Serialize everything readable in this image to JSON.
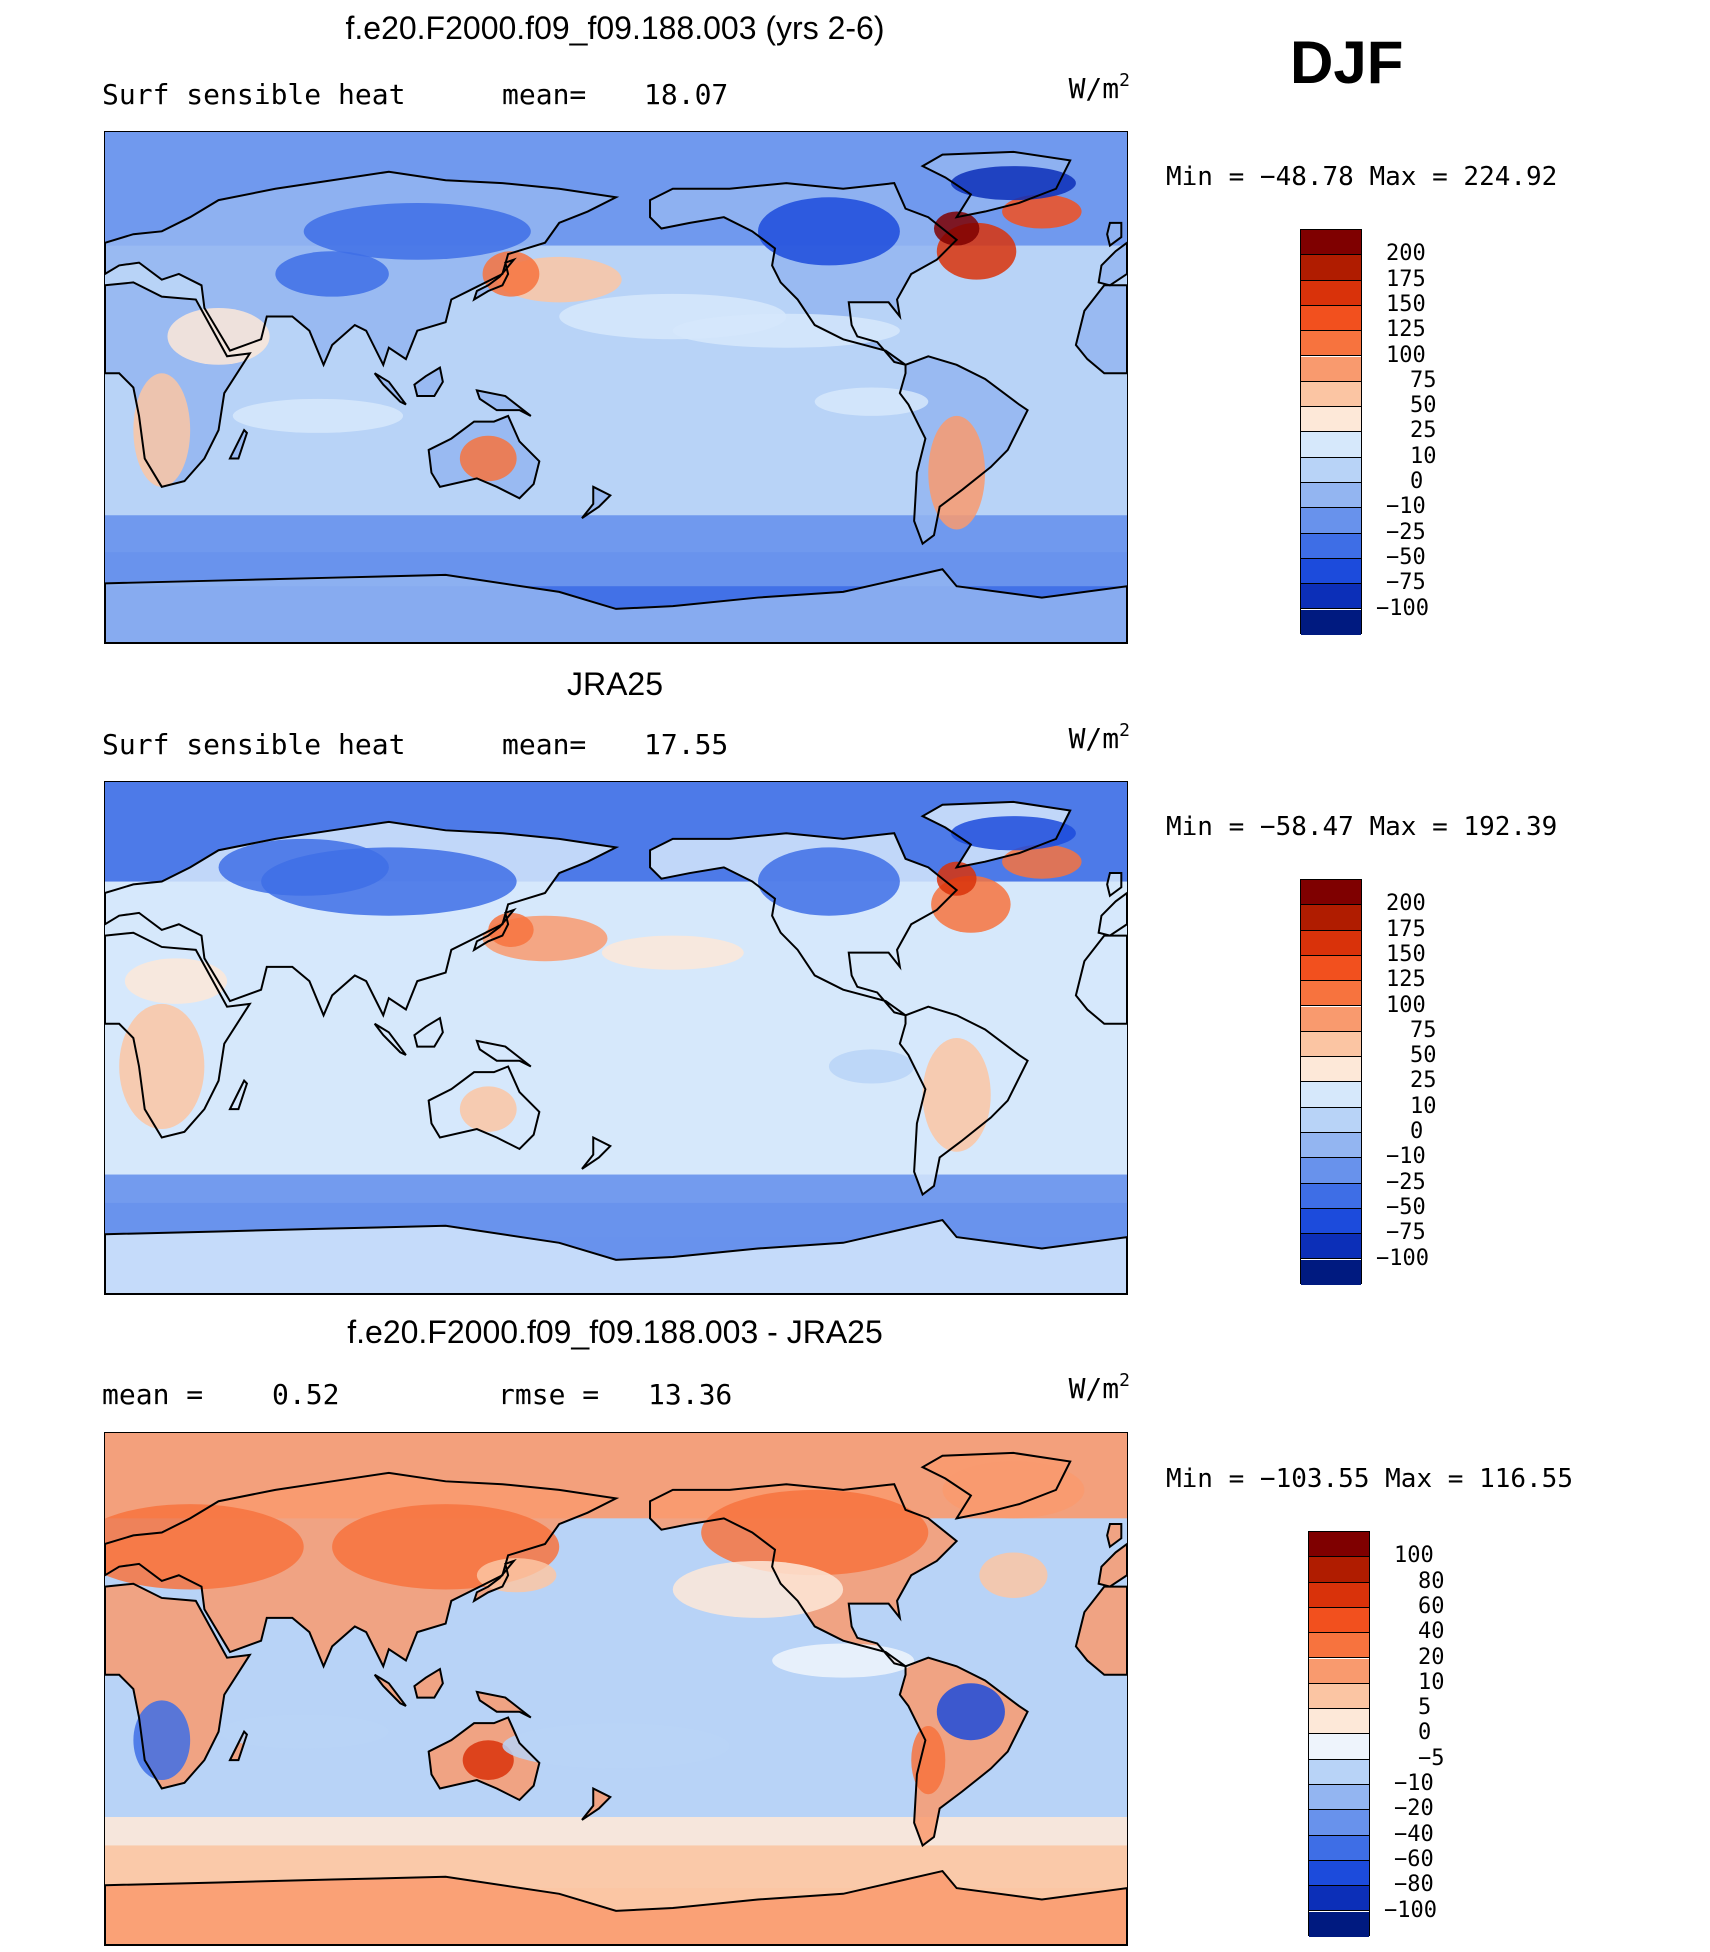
{
  "season": "DJF",
  "chart_data": [
    {
      "type": "heatmap",
      "title": "f.e20.F2000.f09_f09.188.003 (yrs 2-6)",
      "variable": "Surf sensible heat",
      "stat_label": "mean=",
      "stat_value": "18.07",
      "units_base": "W/m",
      "units_exp": "2",
      "minmax": "Min = −48.78 Max = 224.92",
      "min": -48.78,
      "max": 224.92,
      "mean": 18.07,
      "colorbar": {
        "labels": [
          "200",
          "175",
          "150",
          "125",
          "100",
          "75",
          "50",
          "25",
          "10",
          "0",
          "−10",
          "−25",
          "−50",
          "−75",
          "−100"
        ],
        "colors": [
          "#7f0000",
          "#b01c00",
          "#d9320a",
          "#f2501e",
          "#f7733e",
          "#f99a6e",
          "#fbc5a3",
          "#fde8d8",
          "#d6e8fb",
          "#b8d3f7",
          "#93b5f1",
          "#6892ec",
          "#3e6ee6",
          "#1c4bdc",
          "#0c2fb8",
          "#001a80"
        ]
      }
    },
    {
      "type": "heatmap",
      "title": "JRA25",
      "variable": "Surf sensible heat",
      "stat_label": "mean=",
      "stat_value": "17.55",
      "units_base": "W/m",
      "units_exp": "2",
      "minmax": "Min = −58.47 Max = 192.39",
      "min": -58.47,
      "max": 192.39,
      "mean": 17.55,
      "colorbar": {
        "labels": [
          "200",
          "175",
          "150",
          "125",
          "100",
          "75",
          "50",
          "25",
          "10",
          "0",
          "−10",
          "−25",
          "−50",
          "−75",
          "−100"
        ],
        "colors": [
          "#7f0000",
          "#b01c00",
          "#d9320a",
          "#f2501e",
          "#f7733e",
          "#f99a6e",
          "#fbc5a3",
          "#fde8d8",
          "#d6e8fb",
          "#b8d3f7",
          "#93b5f1",
          "#6892ec",
          "#3e6ee6",
          "#1c4bdc",
          "#0c2fb8",
          "#001a80"
        ]
      }
    },
    {
      "type": "heatmap",
      "title": "f.e20.F2000.f09_f09.188.003 - JRA25",
      "stat_label": "mean =",
      "stat_value": "0.52",
      "rmse_label": "rmse =",
      "rmse_value": "13.36",
      "units_base": "W/m",
      "units_exp": "2",
      "minmax": "Min = −103.55 Max = 116.55",
      "min": -103.55,
      "max": 116.55,
      "mean": 0.52,
      "rmse": 13.36,
      "colorbar": {
        "labels": [
          "100",
          "80",
          "60",
          "40",
          "20",
          "10",
          "5",
          "0",
          "−5",
          "−10",
          "−20",
          "−40",
          "−60",
          "−80",
          "−100"
        ],
        "colors": [
          "#7f0000",
          "#b01c00",
          "#d9320a",
          "#f2501e",
          "#f7733e",
          "#f99a6e",
          "#fbc5a3",
          "#fde8d8",
          "#eef4fc",
          "#b8d3f7",
          "#93b5f1",
          "#6892ec",
          "#3e6ee6",
          "#1c4bdc",
          "#0c2fb8",
          "#001a80"
        ]
      }
    }
  ]
}
